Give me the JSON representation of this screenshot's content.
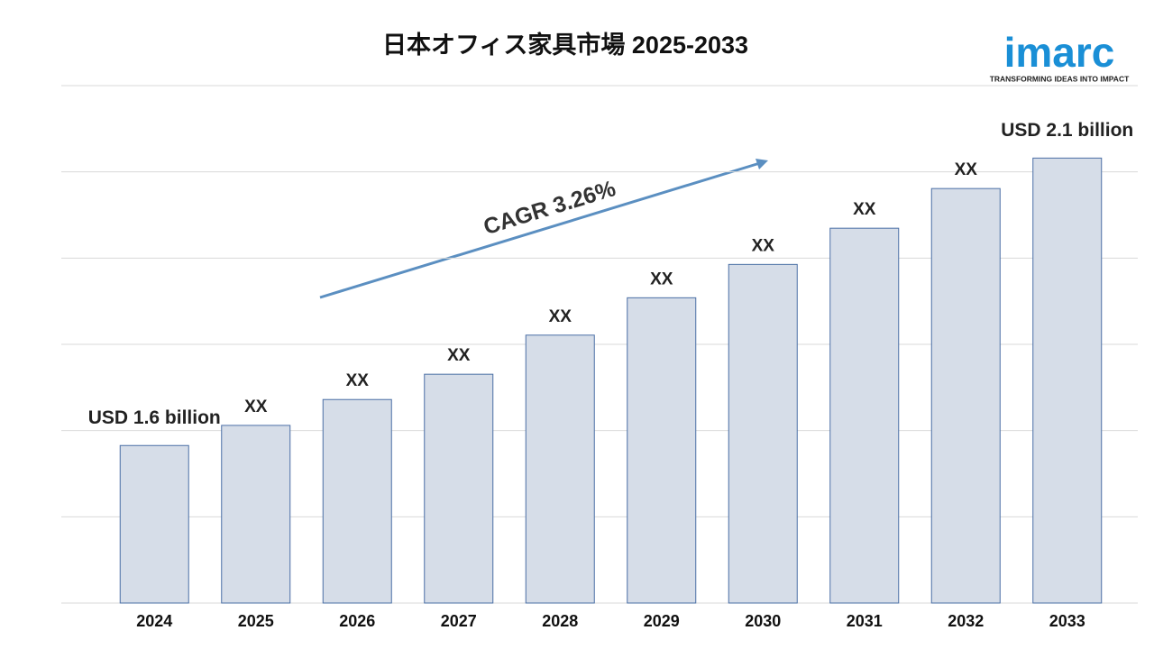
{
  "chart_data": {
    "type": "bar",
    "title": "日本オフィス家具市場 2025-2033",
    "categories": [
      "2024",
      "2025",
      "2026",
      "2027",
      "2028",
      "2029",
      "2030",
      "2031",
      "2032",
      "2033"
    ],
    "values": [
      1.6,
      1.635,
      1.68,
      1.724,
      1.792,
      1.857,
      1.915,
      1.978,
      2.047,
      2.1
    ],
    "value_labels": [
      "USD 1.6 billion",
      "XX",
      "XX",
      "XX",
      "XX",
      "XX",
      "XX",
      "XX",
      "XX",
      "USD 2.1 billion"
    ],
    "color": "#d6dde8",
    "edge_color": "#4a6fa5",
    "ylim": [
      1.326,
      2.226
    ],
    "grid": true,
    "annotation": "CAGR 3.26%"
  },
  "logo": {
    "name": "imarc",
    "tagline": "TRANSFORMING IDEAS INTO IMPACT"
  }
}
